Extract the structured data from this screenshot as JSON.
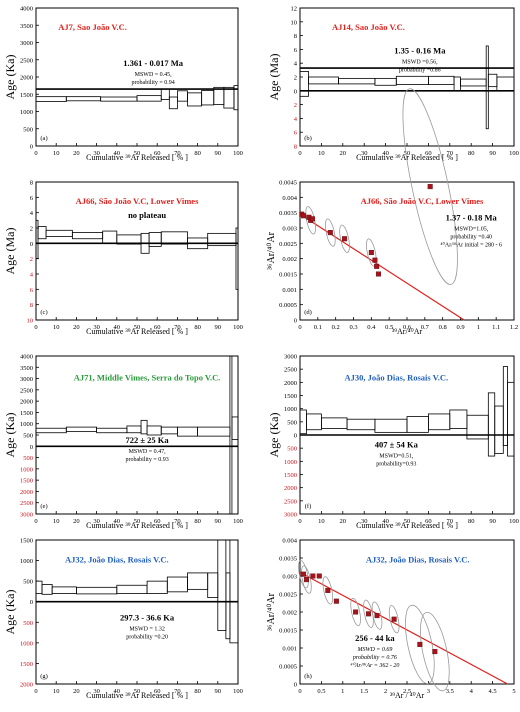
{
  "figure": {
    "age_ka_label": "Age (Ka)",
    "age_ma_label": "Age (Ma)",
    "cumulative_label": "Cumulative ³⁹Ar Released [ % ]",
    "iso_x_label_bottom": "³⁹Ar/⁴⁰Ar",
    "iso_y_label": "³⁶Ar/⁴⁰Ar"
  },
  "chart_data": [
    {
      "panel": "(a)",
      "type": "step-spectrum",
      "title": "AJ7, Sao João V.C.",
      "title_color": "#e0201c",
      "ylabel": "Age (Ka)",
      "ylim": [
        0,
        4000
      ],
      "yticks": [
        0,
        500,
        1000,
        1500,
        2000,
        2500,
        3000,
        3500,
        4000
      ],
      "xlabel": "Cumulative ³⁹Ar Released [ % ]",
      "xlim": [
        0,
        100
      ],
      "xticks": [
        0,
        10,
        20,
        30,
        40,
        50,
        60,
        70,
        80,
        90,
        100
      ],
      "plateau_line": 1650,
      "result_lines": [
        "1.361  -  0.017 Ma",
        "MSWD = 0.45,",
        "probability = 0.94"
      ],
      "steps": [
        {
          "x0": 0,
          "x1": 15,
          "age": 1360,
          "err": 70
        },
        {
          "x0": 15,
          "x1": 32,
          "age": 1370,
          "err": 60
        },
        {
          "x0": 32,
          "x1": 50,
          "age": 1360,
          "err": 60
        },
        {
          "x0": 50,
          "x1": 62,
          "age": 1380,
          "err": 80
        },
        {
          "x0": 62,
          "x1": 66,
          "age": 1500,
          "err": 150
        },
        {
          "x0": 66,
          "x1": 70,
          "age": 1250,
          "err": 170
        },
        {
          "x0": 70,
          "x1": 75,
          "age": 1450,
          "err": 150
        },
        {
          "x0": 75,
          "x1": 82,
          "age": 1350,
          "err": 190
        },
        {
          "x0": 82,
          "x1": 88,
          "age": 1400,
          "err": 210
        },
        {
          "x0": 88,
          "x1": 93,
          "age": 1450,
          "err": 250
        },
        {
          "x0": 93,
          "x1": 98,
          "age": 1400,
          "err": 300
        },
        {
          "x0": 98,
          "x1": 100,
          "age": 1400,
          "err": 350
        }
      ]
    },
    {
      "panel": "(b)",
      "type": "step-spectrum",
      "title": "AJ14, Sao João V.C.",
      "title_color": "#e0201c",
      "ylabel": "Age (Ma)",
      "ylim": [
        -8,
        12
      ],
      "yticks": [
        -8,
        -6,
        -4,
        -2,
        0,
        2,
        4,
        6,
        8,
        10,
        12
      ],
      "xlabel": "Cumulative ³⁹Ar Released [ % ]",
      "xlim": [
        0,
        100
      ],
      "xticks": [
        0,
        10,
        20,
        30,
        40,
        50,
        60,
        70,
        80,
        90,
        100
      ],
      "plateau_line": 3.3,
      "result_lines": [
        "1.35  -  0.16  Ma",
        "MSWD =0.56,",
        "probability =0.86"
      ],
      "steps": [
        {
          "x0": 0,
          "x1": 4,
          "age": 1.0,
          "err": 1.8
        },
        {
          "x0": 4,
          "x1": 18,
          "age": 1.5,
          "err": 0.5
        },
        {
          "x0": 18,
          "x1": 35,
          "age": 1.4,
          "err": 0.4
        },
        {
          "x0": 35,
          "x1": 45,
          "age": 1.3,
          "err": 0.5
        },
        {
          "x0": 45,
          "x1": 60,
          "age": 1.5,
          "err": 0.6
        },
        {
          "x0": 60,
          "x1": 72,
          "age": 1.5,
          "err": 0.6
        },
        {
          "x0": 72,
          "x1": 75,
          "age": 1.0,
          "err": 1.0
        },
        {
          "x0": 75,
          "x1": 87,
          "age": 1.2,
          "err": 0.5
        },
        {
          "x0": 87,
          "x1": 88,
          "age": 0.5,
          "err": 6.0
        },
        {
          "x0": 88,
          "x1": 92,
          "age": 1.5,
          "err": 0.9
        },
        {
          "x0": 92,
          "x1": 100,
          "age": 1.0,
          "err": 1.0
        }
      ]
    },
    {
      "panel": "(c)",
      "type": "step-spectrum",
      "title": "AJ66, São João V.C, Lower Vimes",
      "title_color": "#e0201c",
      "ylabel": "Age (Ma)",
      "ylim": [
        -10,
        8
      ],
      "yticks": [
        -10,
        -8,
        -6,
        -4,
        -2,
        0,
        2,
        4,
        6,
        8
      ],
      "xlabel": "Cumulative ³⁹Ar Released [ % ]",
      "xlim": [
        0,
        100
      ],
      "xticks": [
        0,
        10,
        20,
        30,
        40,
        50,
        60,
        70,
        80,
        90,
        100
      ],
      "plateau_line": null,
      "result_lines": [
        "no plateau"
      ],
      "steps": [
        {
          "x0": 0,
          "x1": 1,
          "age": 0.5,
          "err": 2.5
        },
        {
          "x0": 1,
          "x1": 5,
          "age": 1.4,
          "err": 0.8
        },
        {
          "x0": 5,
          "x1": 18,
          "age": 1.3,
          "err": 0.4
        },
        {
          "x0": 18,
          "x1": 33,
          "age": 1.0,
          "err": 0.4
        },
        {
          "x0": 33,
          "x1": 40,
          "age": 0.8,
          "err": 0.8
        },
        {
          "x0": 40,
          "x1": 52,
          "age": 0.5,
          "err": 0.6
        },
        {
          "x0": 52,
          "x1": 56,
          "age": 0.0,
          "err": 1.3
        },
        {
          "x0": 56,
          "x1": 62,
          "age": 0.5,
          "err": 0.9
        },
        {
          "x0": 62,
          "x1": 75,
          "age": 0.7,
          "err": 0.8
        },
        {
          "x0": 75,
          "x1": 85,
          "age": 0.0,
          "err": 0.7
        },
        {
          "x0": 85,
          "x1": 99,
          "age": 0.5,
          "err": 0.8
        },
        {
          "x0": 99,
          "x1": 100,
          "age": -2.0,
          "err": 4.0
        }
      ]
    },
    {
      "panel": "(d)",
      "type": "isochron",
      "title": "AJ66, São João V.C, Lower Vimes",
      "title_color": "#e0201c",
      "xlabel": "³⁹Ar/⁴⁰Ar",
      "ylabel": "³⁶Ar/⁴⁰Ar",
      "xlim": [
        0,
        1.2
      ],
      "xticks": [
        0,
        0.1,
        0.2,
        0.3,
        0.4,
        0.5,
        0.6,
        0.7,
        0.8,
        0.9,
        1.0,
        1.1,
        1.2
      ],
      "ylim": [
        0,
        0.0045
      ],
      "yticks": [
        0,
        0.0005,
        0.001,
        0.0015,
        0.002,
        0.0025,
        0.003,
        0.0035,
        0.004,
        0.0045
      ],
      "fit_line": {
        "x0": 0,
        "y0": 0.00345,
        "x1": 0.92,
        "y1": 0
      },
      "result_lines": [
        "1.37  -  0.18  Ma",
        "MSWD=1.05,",
        "probability =0.40",
        "⁴⁰Ar/³⁶Ar initial = 280  -  6"
      ],
      "points": [
        {
          "x": 0.01,
          "y": 0.00345
        },
        {
          "x": 0.02,
          "y": 0.0034
        },
        {
          "x": 0.05,
          "y": 0.00335
        },
        {
          "x": 0.06,
          "y": 0.00325
        },
        {
          "x": 0.07,
          "y": 0.0033
        },
        {
          "x": 0.17,
          "y": 0.00285
        },
        {
          "x": 0.25,
          "y": 0.00265
        },
        {
          "x": 0.4,
          "y": 0.0022
        },
        {
          "x": 0.42,
          "y": 0.00195
        },
        {
          "x": 0.43,
          "y": 0.00175
        },
        {
          "x": 0.44,
          "y": 0.0015
        },
        {
          "x": 0.73,
          "y": 0.00435
        }
      ],
      "ellipse_points": [
        3,
        5,
        6,
        7,
        11
      ]
    },
    {
      "panel": "(e)",
      "type": "step-spectrum",
      "title": "AJ71, Middle Vimes, Serra do Topo V.C.",
      "title_color": "#2a9a3a",
      "ylabel": "Age (Ka)",
      "ylim": [
        -3000,
        4000
      ],
      "yticks": [
        -3000,
        -2500,
        -2000,
        -1500,
        -1000,
        -500,
        0,
        500,
        1000,
        1500,
        2000,
        2500,
        3000,
        3500,
        4000
      ],
      "xlabel": "Cumulative ³⁹Ar Released [ % ]",
      "xlim": [
        0,
        100
      ],
      "xticks": [
        0,
        10,
        20,
        30,
        40,
        50,
        60,
        70,
        80,
        90,
        100
      ],
      "plateau_line": 0,
      "result_lines": [
        "722 ± 25 Ka",
        "MSWD = 0.47,",
        "probability = 0.93"
      ],
      "steps": [
        {
          "x0": 0,
          "x1": 15,
          "age": 700,
          "err": 100
        },
        {
          "x0": 15,
          "x1": 30,
          "age": 750,
          "err": 100
        },
        {
          "x0": 30,
          "x1": 45,
          "age": 700,
          "err": 100
        },
        {
          "x0": 45,
          "x1": 52,
          "age": 750,
          "err": 150
        },
        {
          "x0": 52,
          "x1": 55,
          "age": 850,
          "err": 300
        },
        {
          "x0": 55,
          "x1": 62,
          "age": 700,
          "err": 200
        },
        {
          "x0": 62,
          "x1": 70,
          "age": 700,
          "err": 150
        },
        {
          "x0": 70,
          "x1": 80,
          "age": 650,
          "err": 200
        },
        {
          "x0": 80,
          "x1": 96,
          "age": 650,
          "err": 200
        },
        {
          "x0": 96,
          "x1": 97,
          "age": 500,
          "err": 3500
        },
        {
          "x0": 97,
          "x1": 100,
          "age": 800,
          "err": 500
        }
      ]
    },
    {
      "panel": "(f)",
      "type": "step-spectrum",
      "title": "AJ30, João Dias, Rosais V.C.",
      "title_color": "#1f5fbf",
      "ylabel": "Age (Ka)",
      "ylim": [
        -3000,
        3000
      ],
      "yticks": [
        -3000,
        -2500,
        -2000,
        -1500,
        -1000,
        -500,
        0,
        500,
        1000,
        1500,
        2000,
        2500,
        3000
      ],
      "xlabel": "Cumulative ³⁹Ar Released [ % ]",
      "xlim": [
        0,
        100
      ],
      "xticks": [
        0,
        10,
        20,
        30,
        40,
        50,
        60,
        70,
        80,
        90,
        100
      ],
      "plateau_line": 0,
      "result_lines": [
        "407 ± 54 Ka",
        "MSWD=0.51,",
        "probability=0.93"
      ],
      "steps": [
        {
          "x0": 0,
          "x1": 3,
          "age": 500,
          "err": 450
        },
        {
          "x0": 3,
          "x1": 10,
          "age": 500,
          "err": 300
        },
        {
          "x0": 10,
          "x1": 22,
          "age": 450,
          "err": 200
        },
        {
          "x0": 22,
          "x1": 35,
          "age": 400,
          "err": 200
        },
        {
          "x0": 35,
          "x1": 50,
          "age": 350,
          "err": 250
        },
        {
          "x0": 50,
          "x1": 60,
          "age": 400,
          "err": 300
        },
        {
          "x0": 60,
          "x1": 70,
          "age": 500,
          "err": 300
        },
        {
          "x0": 70,
          "x1": 78,
          "age": 600,
          "err": 350
        },
        {
          "x0": 78,
          "x1": 88,
          "age": 300,
          "err": 450
        },
        {
          "x0": 88,
          "x1": 91,
          "age": 400,
          "err": 1200
        },
        {
          "x0": 91,
          "x1": 95,
          "age": 200,
          "err": 900
        },
        {
          "x0": 95,
          "x1": 97,
          "age": 1100,
          "err": 1500
        },
        {
          "x0": 97,
          "x1": 100,
          "age": 600,
          "err": 1400
        }
      ]
    },
    {
      "panel": "(g)",
      "type": "step-spectrum",
      "title": "AJ32, João Dias, Rosais V.C.",
      "title_color": "#1f5fbf",
      "ylabel": "Age (Ka)",
      "ylim": [
        -2000,
        1500
      ],
      "yticks": [
        -2000,
        -1500,
        -1000,
        -500,
        0,
        500,
        1000,
        1500
      ],
      "xlabel": "Cumulative ³⁹Ar Released [ % ]",
      "xlim": [
        0,
        100
      ],
      "xticks": [
        0,
        10,
        20,
        30,
        40,
        50,
        60,
        70,
        80,
        90,
        100
      ],
      "plateau_line": 0,
      "result_lines": [
        "297.3  -  36.6 Ka",
        "MSWD = 1.32",
        "probability =0.20"
      ],
      "steps": [
        {
          "x0": 0,
          "x1": 3,
          "age": 350,
          "err": 150
        },
        {
          "x0": 3,
          "x1": 8,
          "age": 300,
          "err": 120
        },
        {
          "x0": 8,
          "x1": 20,
          "age": 280,
          "err": 80
        },
        {
          "x0": 20,
          "x1": 40,
          "age": 270,
          "err": 80
        },
        {
          "x0": 40,
          "x1": 55,
          "age": 300,
          "err": 100
        },
        {
          "x0": 55,
          "x1": 65,
          "age": 350,
          "err": 150
        },
        {
          "x0": 65,
          "x1": 75,
          "age": 420,
          "err": 180
        },
        {
          "x0": 75,
          "x1": 85,
          "age": 500,
          "err": 200
        },
        {
          "x0": 85,
          "x1": 90,
          "age": 400,
          "err": 300
        },
        {
          "x0": 90,
          "x1": 94,
          "age": 400,
          "err": 1100
        },
        {
          "x0": 94,
          "x1": 96,
          "age": -100,
          "err": 800
        },
        {
          "x0": 96,
          "x1": 100,
          "age": 400,
          "err": 1400
        }
      ]
    },
    {
      "panel": "(h)",
      "type": "isochron",
      "title": "AJ32, João Dias, Rosais V.C.",
      "title_color": "#1f5fbf",
      "xlabel": "³⁹Ar / ⁴⁰Ar",
      "ylabel": "³⁶Ar/⁴⁰Ar",
      "xlim": [
        0,
        5.0
      ],
      "xticks": [
        0,
        0.5,
        1.0,
        1.5,
        2.0,
        2.5,
        3.0,
        3.5,
        4.0,
        4.5,
        5.0
      ],
      "ylim": [
        0,
        0.004
      ],
      "yticks": [
        0,
        0.0005,
        0.001,
        0.0015,
        0.002,
        0.0025,
        0.003,
        0.0035,
        0.004
      ],
      "fit_line": {
        "x0": 0,
        "y0": 0.0031,
        "x1": 4.85,
        "y1": 0
      },
      "result_lines": [
        "256 -  44 ka",
        "MSWD = 0.69",
        "probability =  0.76",
        "⁴⁰Ar/³⁶Ar = 362 -  20"
      ],
      "points": [
        {
          "x": 0.08,
          "y": 0.00305
        },
        {
          "x": 0.15,
          "y": 0.0029
        },
        {
          "x": 0.3,
          "y": 0.003
        },
        {
          "x": 0.45,
          "y": 0.003
        },
        {
          "x": 0.65,
          "y": 0.0026
        },
        {
          "x": 0.85,
          "y": 0.0023
        },
        {
          "x": 1.3,
          "y": 0.002
        },
        {
          "x": 1.6,
          "y": 0.00195
        },
        {
          "x": 1.8,
          "y": 0.0019
        },
        {
          "x": 2.2,
          "y": 0.0018
        },
        {
          "x": 2.8,
          "y": 0.0011
        },
        {
          "x": 3.15,
          "y": 0.0009
        }
      ],
      "ellipse_points": [
        0,
        1,
        4,
        6,
        7,
        8,
        9,
        10,
        11
      ]
    }
  ]
}
